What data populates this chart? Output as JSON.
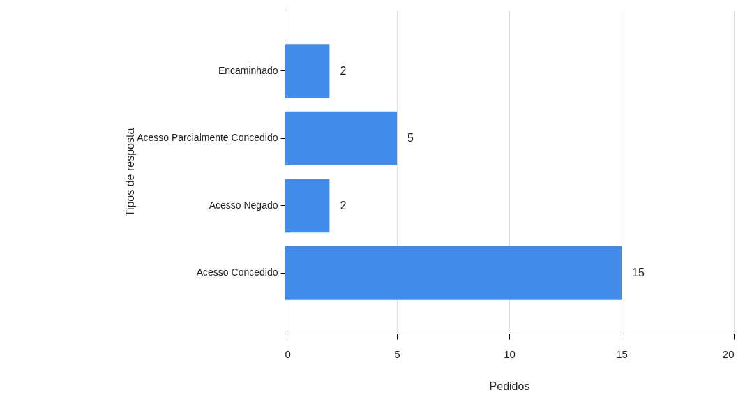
{
  "chart_data": {
    "type": "bar",
    "orientation": "horizontal",
    "xlabel": "Pedidos",
    "ylabel": "Tipos de resposta",
    "categories": [
      "Encaminhado",
      "Acesso Parcialmente Concedido",
      "Acesso Negado",
      "Acesso Concedido"
    ],
    "values": [
      2,
      5,
      2,
      15
    ],
    "color": "#428bea",
    "xlim": [
      0,
      20
    ],
    "xticks": [
      0,
      5,
      10,
      15,
      20
    ],
    "grid": "x",
    "data_labels": true
  }
}
